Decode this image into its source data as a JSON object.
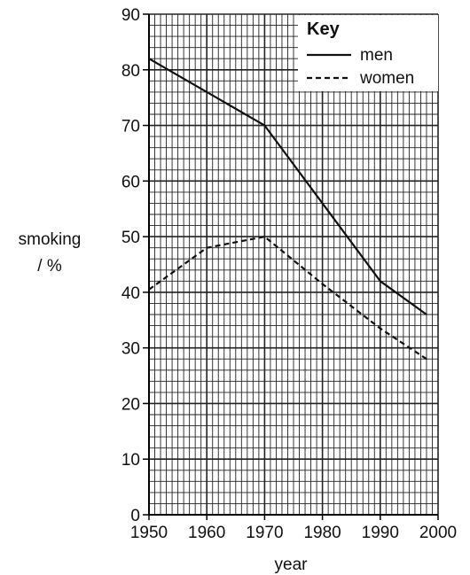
{
  "chart_data": {
    "type": "line",
    "xlabel": "year",
    "ylabel": [
      "smoking",
      "/ %"
    ],
    "xlim": [
      1950,
      2000
    ],
    "ylim": [
      0,
      90
    ],
    "x_ticks": [
      1950,
      1960,
      1970,
      1980,
      1990,
      2000
    ],
    "y_ticks": [
      0,
      10,
      20,
      30,
      40,
      50,
      60,
      70,
      80,
      90
    ],
    "grid": true,
    "legend": {
      "title": "Key",
      "placement": "top-right"
    },
    "series": [
      {
        "name": "men",
        "style": "solid",
        "points": [
          [
            1950,
            82
          ],
          [
            1970,
            70
          ],
          [
            1990,
            42
          ],
          [
            1998,
            36
          ]
        ]
      },
      {
        "name": "women",
        "style": "dashed",
        "points": [
          [
            1950,
            40.5
          ],
          [
            1960,
            48
          ],
          [
            1970,
            50
          ],
          [
            1980,
            41.5
          ],
          [
            1990,
            33.5
          ],
          [
            1998,
            28
          ]
        ]
      }
    ]
  }
}
